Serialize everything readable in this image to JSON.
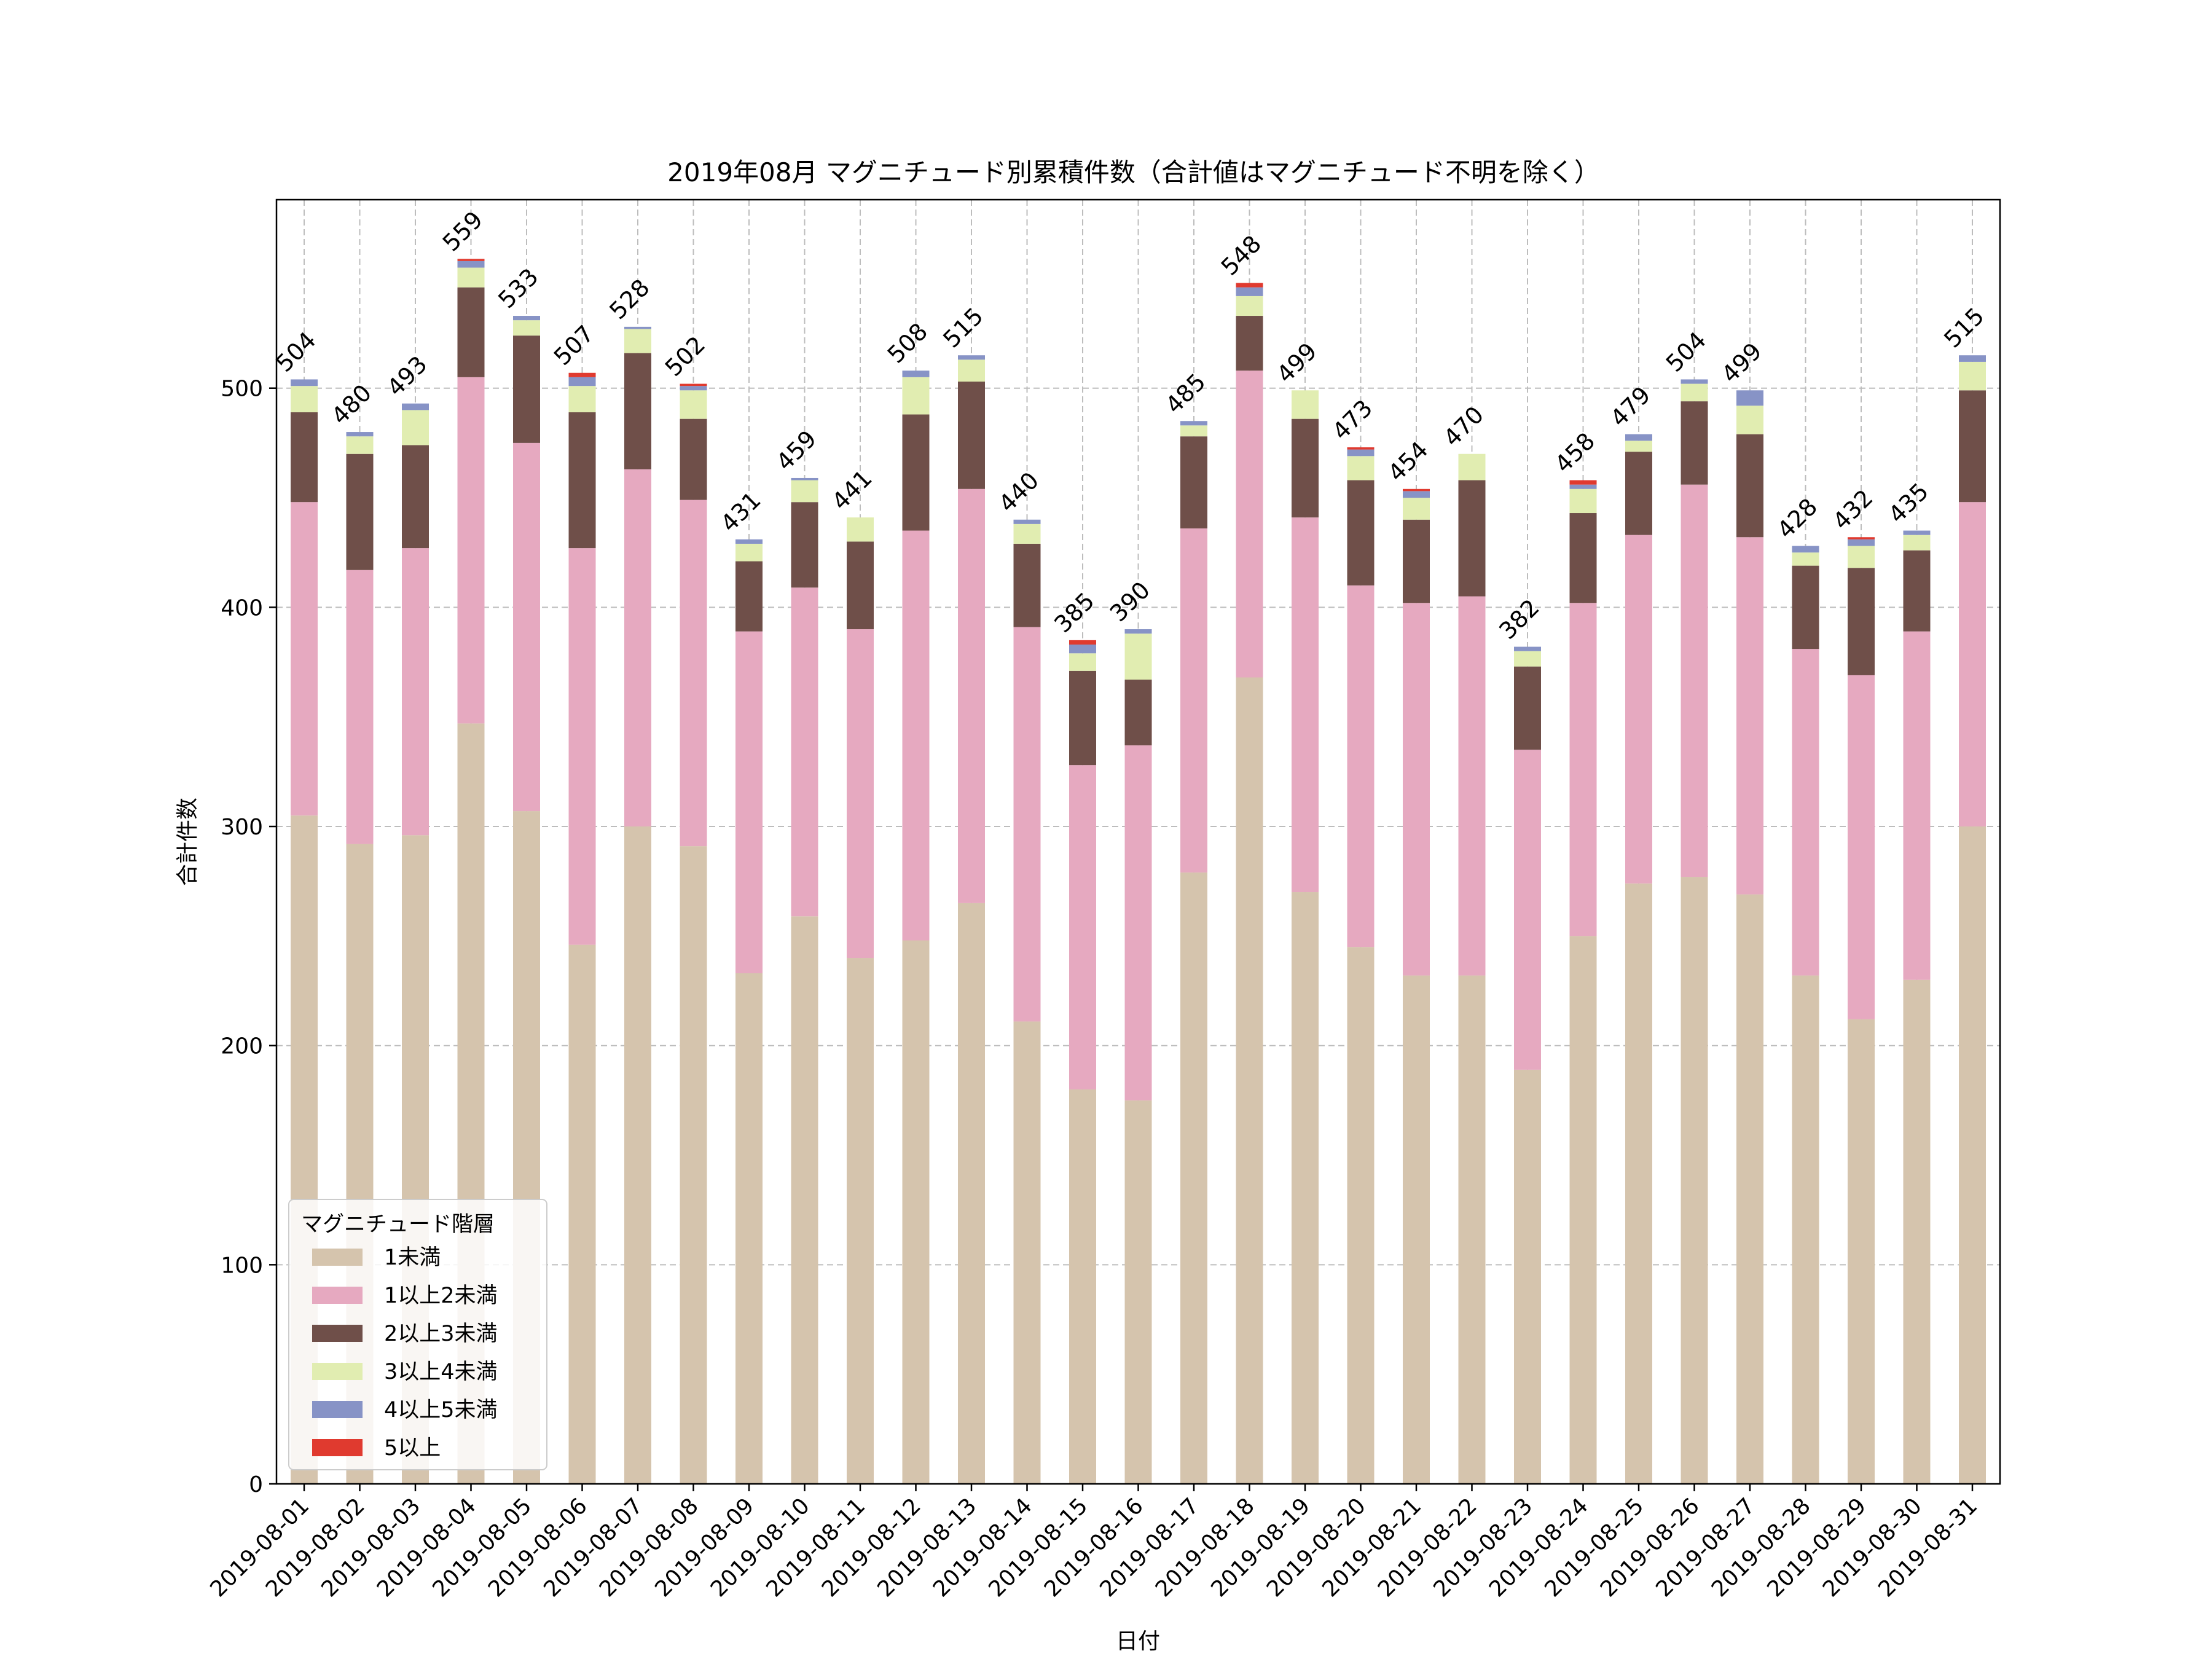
{
  "chart_data": {
    "type": "bar",
    "stacked": true,
    "title": "2019年08月 マグニチュード別累積件数（合計値はマグニチュード不明を除く）",
    "xlabel": "日付",
    "ylabel": "合計件数",
    "ylim": [
      0,
      586
    ],
    "yticks": [
      0,
      100,
      200,
      300,
      400,
      500
    ],
    "grid": true,
    "legend_position": "lower-left",
    "legend_title": "マグニチュード階層",
    "categories": [
      "2019-08-01",
      "2019-08-02",
      "2019-08-03",
      "2019-08-04",
      "2019-08-05",
      "2019-08-06",
      "2019-08-07",
      "2019-08-08",
      "2019-08-09",
      "2019-08-10",
      "2019-08-11",
      "2019-08-12",
      "2019-08-13",
      "2019-08-14",
      "2019-08-15",
      "2019-08-16",
      "2019-08-17",
      "2019-08-18",
      "2019-08-19",
      "2019-08-20",
      "2019-08-21",
      "2019-08-22",
      "2019-08-23",
      "2019-08-24",
      "2019-08-25",
      "2019-08-26",
      "2019-08-27",
      "2019-08-28",
      "2019-08-29",
      "2019-08-30",
      "2019-08-31"
    ],
    "totals": [
      504,
      480,
      493,
      559,
      533,
      507,
      528,
      502,
      431,
      459,
      441,
      508,
      515,
      440,
      385,
      390,
      485,
      548,
      499,
      473,
      454,
      470,
      382,
      458,
      479,
      504,
      499,
      428,
      432,
      435,
      515
    ],
    "series": [
      {
        "name": "1未満",
        "color": "#d5c4ad",
        "values": [
          305,
          292,
          296,
          347,
          307,
          246,
          300,
          291,
          233,
          259,
          240,
          248,
          265,
          211,
          180,
          175,
          279,
          368,
          270,
          245,
          232,
          232,
          189,
          250,
          274,
          277,
          269,
          232,
          212,
          230,
          300
        ]
      },
      {
        "name": "1以上2未満",
        "color": "#e6a9c0",
        "values": [
          143,
          125,
          131,
          158,
          168,
          181,
          163,
          158,
          156,
          150,
          150,
          187,
          189,
          180,
          148,
          162,
          157,
          140,
          171,
          165,
          170,
          173,
          146,
          152,
          159,
          179,
          163,
          149,
          157,
          159,
          148
        ]
      },
      {
        "name": "2以上3未満",
        "color": "#6f4f49",
        "values": [
          41,
          53,
          47,
          41,
          49,
          62,
          53,
          37,
          32,
          39,
          40,
          53,
          49,
          38,
          43,
          30,
          42,
          25,
          45,
          48,
          38,
          53,
          38,
          41,
          38,
          38,
          47,
          38,
          49,
          37,
          51
        ]
      },
      {
        "name": "3以上4未満",
        "color": "#e1edb1",
        "values": [
          12,
          8,
          16,
          9,
          7,
          12,
          11,
          13,
          8,
          10,
          11,
          17,
          10,
          9,
          8,
          21,
          5,
          9,
          13,
          11,
          10,
          12,
          7,
          11,
          5,
          8,
          13,
          6,
          10,
          7,
          13
        ]
      },
      {
        "name": "4以上5未満",
        "color": "#8793c6",
        "values": [
          3,
          2,
          3,
          3,
          2,
          4,
          1,
          2,
          2,
          1,
          0,
          3,
          2,
          2,
          4,
          2,
          2,
          4,
          0,
          3,
          3,
          0,
          2,
          2,
          3,
          2,
          7,
          3,
          3,
          2,
          3
        ]
      },
      {
        "name": "5以上",
        "color": "#e03a2f",
        "values": [
          0,
          0,
          0,
          1,
          0,
          2,
          0,
          1,
          0,
          0,
          0,
          0,
          0,
          0,
          2,
          0,
          0,
          2,
          0,
          1,
          1,
          0,
          0,
          2,
          0,
          0,
          0,
          0,
          1,
          0,
          0
        ]
      }
    ]
  }
}
